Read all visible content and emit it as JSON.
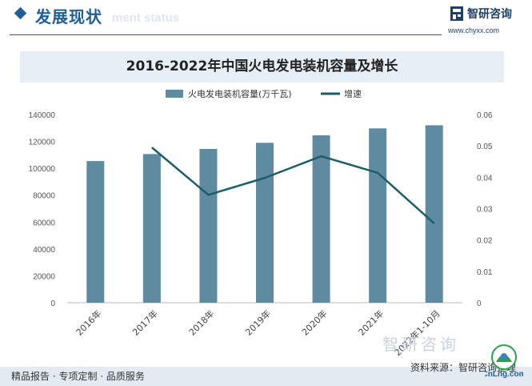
{
  "header": {
    "title": "发展现状",
    "subtitle": "ment status"
  },
  "logo": {
    "name": "智研咨询",
    "url": "www.chyxx.com",
    "icon": "zhiyan-logo-icon"
  },
  "footer": {
    "left": "精品报告 · 专项定制 · 品质服务",
    "right": "资料来源：智研咨询整理"
  },
  "watermark": {
    "text": "智研咨询",
    "badge_text": "CnLng.com"
  },
  "colors": {
    "brand": "#1f5f94",
    "bar": "#5f8ba0",
    "line": "#1c5d6a",
    "title_bg": "#e6eef6",
    "footer_bg": "#e3eaf1"
  },
  "chart_data": {
    "type": "bar",
    "title": "2016-2022年中国火电发电装机容量及增长",
    "categories": [
      "2016年",
      "2017年",
      "2018年",
      "2019年",
      "2020年",
      "2021年",
      "2022年1-10月"
    ],
    "series": [
      {
        "name": "火电发电装机容量(万千瓦)",
        "type": "bar",
        "axis": "left",
        "values": [
          105388,
          110604,
          114408,
          118957,
          124517,
          129678,
          131990
        ]
      },
      {
        "name": "增速",
        "type": "line",
        "axis": "right",
        "values": [
          null,
          0.0495,
          0.0344,
          0.0398,
          0.0467,
          0.0414,
          0.0253
        ]
      }
    ],
    "y_left": {
      "min": 0,
      "max": 140000,
      "ticks": [
        "0",
        "20000",
        "40000",
        "60000",
        "80000",
        "100000",
        "120000",
        "140000"
      ]
    },
    "y_right": {
      "min": 0,
      "max": 0.06,
      "ticks": [
        "0",
        "0.01",
        "0.02",
        "0.03",
        "0.04",
        "0.05",
        "0.06"
      ]
    },
    "legend_position": "top-center",
    "grid": false
  }
}
